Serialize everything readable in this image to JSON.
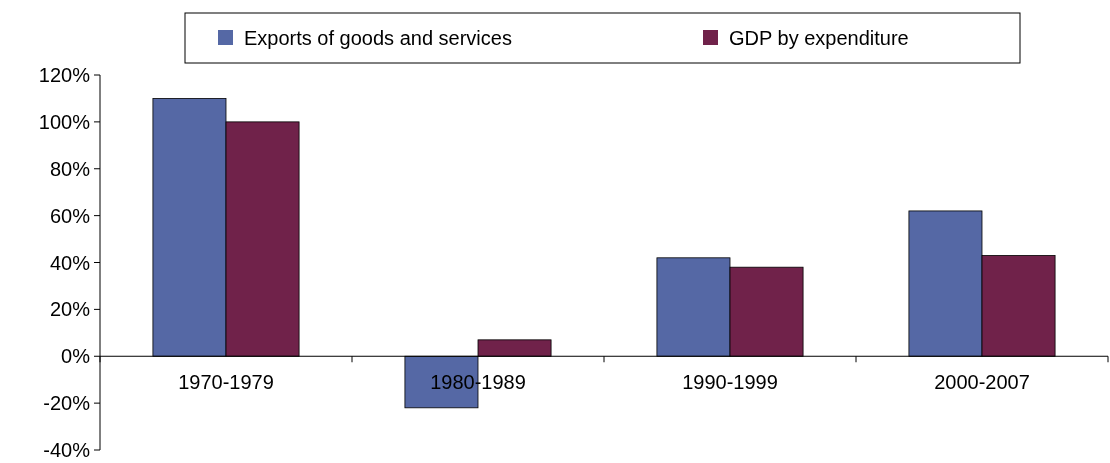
{
  "chart_data": {
    "type": "bar",
    "categories": [
      "1970-1979",
      "1980-1989",
      "1990-1999",
      "2000-2007"
    ],
    "series": [
      {
        "name": "Exports of goods and services",
        "color": "#5568a5",
        "values": [
          110,
          -22,
          42,
          62
        ]
      },
      {
        "name": "GDP by expenditure",
        "color": "#70224a",
        "values": [
          100,
          7,
          38,
          43
        ]
      }
    ],
    "ylim": [
      -40,
      120
    ],
    "yticks": [
      {
        "value": -40,
        "label": "-40%"
      },
      {
        "value": -20,
        "label": "-20%"
      },
      {
        "value": 0,
        "label": "0%"
      },
      {
        "value": 20,
        "label": "20%"
      },
      {
        "value": 40,
        "label": "40%"
      },
      {
        "value": 60,
        "label": "60%"
      },
      {
        "value": 80,
        "label": "80%"
      },
      {
        "value": 100,
        "label": "100%"
      },
      {
        "value": 120,
        "label": "120%"
      }
    ],
    "grid": false,
    "legend": "top"
  }
}
